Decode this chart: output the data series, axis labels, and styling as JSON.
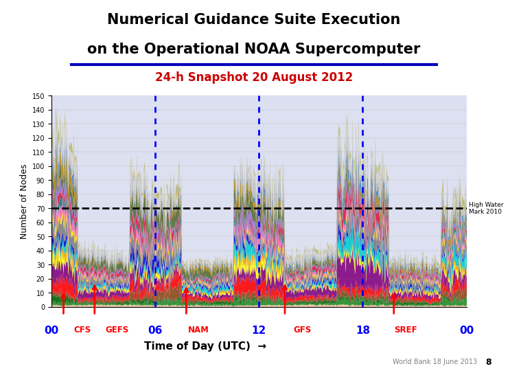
{
  "title_line1": "Numerical Guidance Suite Execution",
  "title_line2": "on the Operational NOAA Supercomputer",
  "subtitle": "24-h Snapshot 20 August 2012",
  "ylabel": "Number of Nodes",
  "xlabel_text": "Time of Day (UTC)",
  "high_water_label": "High Water\nMark 2010",
  "high_water_y": 70,
  "ylim": [
    0,
    150
  ],
  "yticks": [
    0,
    10,
    20,
    30,
    40,
    50,
    60,
    70,
    80,
    90,
    100,
    110,
    120,
    130,
    140,
    150
  ],
  "xlim": [
    0,
    24
  ],
  "background_color": "#ffffff",
  "plot_bg_color": "#dde0f0",
  "blue_dashed_lines": [
    6,
    12,
    18
  ],
  "x_labels_blue": [
    "00",
    "06",
    "12",
    "18",
    "00"
  ],
  "x_labels_blue_pos": [
    0,
    6,
    12,
    18,
    24
  ],
  "x_labels_red": [
    "CFS",
    "GEFS",
    "NAM",
    "GFS",
    "SREF"
  ],
  "x_labels_red_pos": [
    1.8,
    3.8,
    8.5,
    14.5,
    20.5
  ],
  "footer_text": "World Bank 18 June 2013",
  "page_num": "8",
  "title_color": "#000000",
  "subtitle_color": "#cc0000",
  "title_underline_color": "#0000bb",
  "colors_list": [
    "#f5c5a0",
    "#228B22",
    "#006400",
    "#8B4513",
    "#FF0000",
    "#800080",
    "#FFFF00",
    "#FFA500",
    "#00CED1",
    "#0000CD",
    "#808080",
    "#FFD700",
    "#FF69B4",
    "#008080",
    "#DC143C",
    "#9370DB",
    "#556B2F",
    "#B8860B",
    "#4682B4",
    "#C0C0C0",
    "#D3D3D3",
    "#BDB76B"
  ]
}
